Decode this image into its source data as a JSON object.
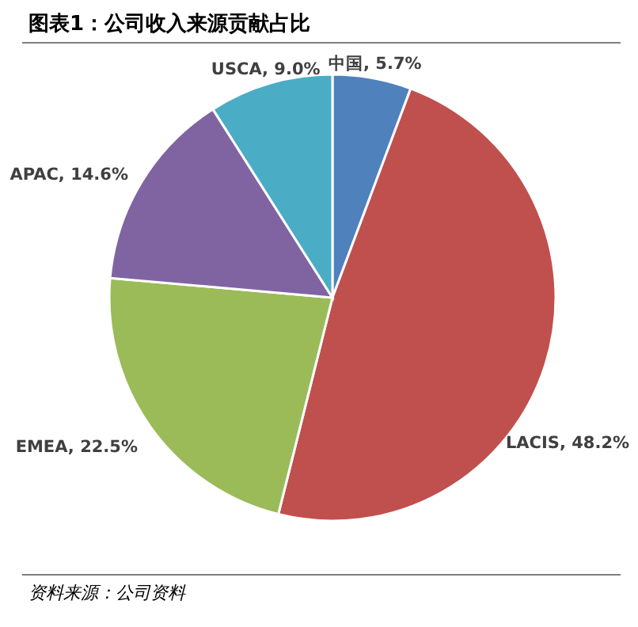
{
  "chart_data": {
    "type": "pie",
    "title": "图表1：公司收入来源贡献占比",
    "categories": [
      "中国",
      "LACIS",
      "EMEA",
      "APAC",
      "USCA"
    ],
    "values": [
      5.7,
      48.2,
      22.5,
      14.6,
      9.0
    ],
    "value_labels": [
      "5.7%",
      "48.2%",
      "22.5%",
      "14.6%",
      "9.0%"
    ],
    "colors": [
      "#4f81bd",
      "#c0504d",
      "#9bbb59",
      "#8064a2",
      "#4bacc6"
    ],
    "annotations": [
      "资料来源：公司资料"
    ]
  }
}
